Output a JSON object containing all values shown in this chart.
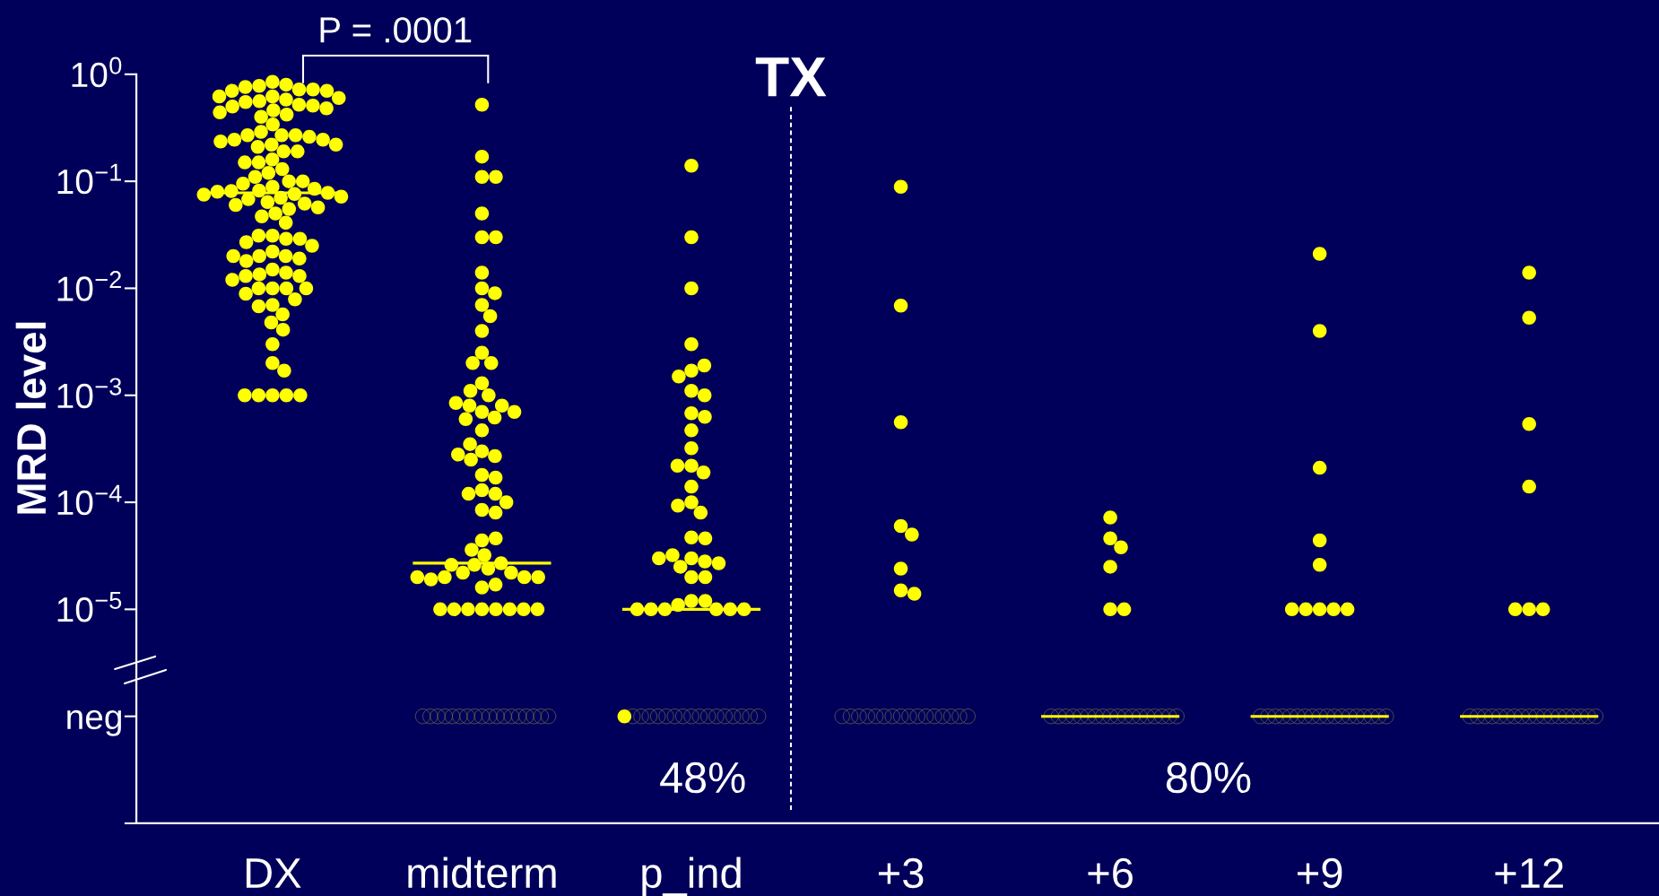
{
  "chart_data": {
    "type": "scatter",
    "categories": [
      "DX",
      "midterm",
      "p_ind",
      "+3",
      "+6",
      "+9",
      "+12"
    ],
    "ylabel": "MRD level",
    "log": "y",
    "ylim": [
      1e-07,
      1
    ],
    "yticks": [
      {
        "value": 1e-07,
        "label": null
      },
      {
        "value": 1e-06,
        "label": "neg"
      },
      {
        "value": 1e-05,
        "label": "10$^{−5}$"
      },
      {
        "value": 0.0001,
        "label": "10$^{−4}$"
      },
      {
        "value": 0.001,
        "label": "10$^{−3}$"
      },
      {
        "value": 0.01,
        "label": "10$^{−2}$"
      },
      {
        "value": 0.1,
        "label": "10$^{−1}$"
      },
      {
        "value": 1,
        "label": "10$^{0}$"
      }
    ],
    "annotations": [
      "P = .0001",
      "TX",
      "48%",
      "80%"
    ],
    "ref_lines": [
      {
        "axis": "y",
        "value": 0.078,
        "color": "#ffff00"
      },
      {
        "axis": "y",
        "value": 2.7e-05,
        "color": "#ffff00"
      },
      {
        "axis": "y",
        "value": 1e-05,
        "color": "#ffff00"
      },
      {
        "axis": "y",
        "value": 1e-06,
        "color": "#ffff00"
      }
    ],
    "series": [
      {
        "marker": "circle",
        "color": "#ffff00",
        "x": [
          "DX",
          "DX",
          "DX",
          "DX",
          "DX",
          "DX",
          "DX",
          "DX",
          "DX",
          "DX",
          "DX",
          "DX",
          "DX",
          "DX",
          "DX",
          "DX",
          "DX",
          "DX",
          "DX",
          "DX",
          "DX",
          "DX",
          "DX",
          "DX",
          "DX",
          "DX",
          "DX",
          "DX",
          "DX",
          "DX",
          "DX",
          "DX",
          "DX",
          "DX",
          "DX",
          "DX",
          "DX",
          "DX",
          "DX",
          "DX",
          "DX",
          "DX",
          "DX",
          "DX",
          "DX",
          "DX",
          "DX",
          "DX",
          "DX",
          "DX",
          "DX",
          "DX",
          "DX",
          "DX",
          "DX",
          "DX",
          "DX",
          "DX",
          "DX",
          "DX",
          "DX",
          "DX",
          "DX",
          "DX",
          "DX",
          "DX",
          "DX",
          "DX",
          "DX",
          "DX",
          "DX",
          "DX",
          "DX",
          "DX",
          "DX",
          "DX",
          "DX",
          "DX",
          "DX",
          "DX",
          "DX",
          "DX",
          "DX",
          "DX",
          "DX",
          "DX",
          "DX",
          "DX",
          "DX",
          "DX",
          "DX",
          "DX",
          "DX",
          "DX",
          "DX",
          "DX",
          "DX",
          "DX",
          "DX",
          "DX",
          "DX",
          "midterm",
          "midterm",
          "midterm",
          "midterm",
          "midterm",
          "midterm",
          "midterm",
          "midterm",
          "midterm",
          "midterm",
          "midterm",
          "midterm",
          "midterm",
          "midterm",
          "midterm",
          "midterm",
          "midterm",
          "midterm",
          "midterm",
          "midterm",
          "midterm",
          "midterm",
          "midterm",
          "midterm",
          "midterm",
          "midterm",
          "midterm",
          "midterm",
          "midterm",
          "midterm",
          "midterm",
          "midterm",
          "midterm",
          "midterm",
          "midterm",
          "midterm",
          "midterm",
          "midterm",
          "midterm",
          "midterm",
          "midterm",
          "midterm",
          "midterm",
          "midterm",
          "midterm",
          "midterm",
          "midterm",
          "midterm",
          "midterm",
          "midterm",
          "midterm",
          "midterm",
          "midterm",
          "midterm",
          "midterm",
          "midterm",
          "midterm",
          "midterm",
          "midterm",
          "midterm",
          "midterm",
          "midterm",
          "midterm",
          "midterm",
          "midterm",
          "p_ind",
          "p_ind",
          "p_ind",
          "p_ind",
          "p_ind",
          "p_ind",
          "p_ind",
          "p_ind",
          "p_ind",
          "p_ind",
          "p_ind",
          "p_ind",
          "p_ind",
          "p_ind",
          "p_ind",
          "p_ind",
          "p_ind",
          "p_ind",
          "p_ind",
          "p_ind",
          "p_ind",
          "p_ind",
          "p_ind",
          "p_ind",
          "p_ind",
          "p_ind",
          "p_ind",
          "p_ind",
          "p_ind",
          "p_ind",
          "p_ind",
          "p_ind",
          "p_ind",
          "p_ind",
          "p_ind",
          "p_ind",
          "p_ind",
          "p_ind",
          "p_ind",
          "p_ind",
          "+3",
          "+3",
          "+3",
          "+3",
          "+3",
          "+3",
          "+3",
          "+3",
          "+6",
          "+6",
          "+6",
          "+6",
          "+6",
          "+6",
          "+9",
          "+9",
          "+9",
          "+9",
          "+9",
          "+9",
          "+9",
          "+9",
          "+9",
          "+9",
          "+12",
          "+12",
          "+12",
          "+12",
          "+12",
          "+12",
          "+12"
        ],
        "values": [
          0.85,
          0.8,
          0.78,
          0.76,
          0.72,
          0.72,
          0.7,
          0.7,
          0.62,
          0.62,
          0.6,
          0.58,
          0.56,
          0.55,
          0.52,
          0.51,
          0.5,
          0.48,
          0.46,
          0.44,
          0.42,
          0.4,
          0.34,
          0.29,
          0.27,
          0.27,
          0.27,
          0.26,
          0.245,
          0.245,
          0.235,
          0.22,
          0.22,
          0.21,
          0.19,
          0.19,
          0.16,
          0.15,
          0.15,
          0.13,
          0.12,
          0.11,
          0.1,
          0.1,
          0.095,
          0.089,
          0.085,
          0.082,
          0.081,
          0.08,
          0.078,
          0.076,
          0.075,
          0.072,
          0.07,
          0.068,
          0.064,
          0.062,
          0.06,
          0.057,
          0.055,
          0.05,
          0.047,
          0.041,
          0.031,
          0.031,
          0.029,
          0.029,
          0.027,
          0.025,
          0.022,
          0.02,
          0.02,
          0.019,
          0.018,
          0.02,
          0.015,
          0.014,
          0.0135,
          0.013,
          0.013,
          0.012,
          0.01,
          0.01,
          0.01,
          0.01,
          0.0089,
          0.0079,
          0.007,
          0.0068,
          0.0057,
          0.0048,
          0.0041,
          0.003,
          0.002,
          0.0017,
          0.001,
          0.001,
          0.001,
          0.001,
          0.001,
          0.52,
          0.17,
          0.11,
          0.11,
          0.05,
          0.03,
          0.03,
          0.014,
          0.01,
          0.009,
          0.007,
          0.0055,
          0.004,
          0.0025,
          0.002,
          0.002,
          0.0013,
          0.001,
          0.0011,
          0.0007,
          0.0008,
          0.00062,
          0.0008,
          0.00085,
          0.0006,
          0.0007,
          0.00047,
          0.0003,
          0.00027,
          0.00025,
          0.00028,
          0.00035,
          0.00018,
          0.00017,
          0.00013,
          0.00012,
          0.00012,
          0.0001,
          8.5e-05,
          8e-05,
          4.4e-05,
          4.6e-05,
          3.6e-05,
          3.2e-05,
          2.6e-05,
          2.4e-05,
          2.7e-05,
          2.2e-05,
          2.6e-05,
          2.2e-05,
          2e-05,
          1.6e-05,
          2e-05,
          1.7e-05,
          1.9e-05,
          2e-05,
          2e-05,
          1e-05,
          1e-05,
          1e-05,
          1e-05,
          1e-05,
          1e-05,
          1e-05,
          1e-05,
          0.14,
          0.03,
          0.01,
          0.003,
          0.0017,
          0.0019,
          0.0015,
          0.0011,
          0.001,
          0.00068,
          0.00063,
          0.00047,
          0.00032,
          0.00022,
          0.00019,
          0.00022,
          0.00014,
          0.0001,
          8e-05,
          9.3e-05,
          4.7e-05,
          4.6e-05,
          3e-05,
          2.8e-05,
          2.5e-05,
          3.2e-05,
          2.7e-05,
          3e-05,
          2e-05,
          2e-05,
          1.2e-05,
          1.2e-05,
          1.1e-05,
          1e-05,
          1e-05,
          1e-05,
          1e-05,
          1e-05,
          1e-05,
          1e-06,
          0.089,
          0.0069,
          0.00056,
          6e-05,
          5e-05,
          2.4e-05,
          1.5e-05,
          1.4e-05,
          7.2e-05,
          4.6e-05,
          3.8e-05,
          2.5e-05,
          1e-05,
          1e-05,
          0.021,
          0.004,
          0.00021,
          4.4e-05,
          2.6e-05,
          1e-05,
          1e-05,
          1e-05,
          1e-05,
          1e-05,
          0.014,
          0.0053,
          0.00054,
          0.00014,
          1e-05,
          1e-05,
          1e-05
        ]
      },
      {
        "marker": "open circle",
        "color": "#707048",
        "x": [
          "midterm",
          "midterm",
          "midterm",
          "midterm",
          "midterm",
          "midterm",
          "midterm",
          "midterm",
          "midterm",
          "midterm",
          "midterm",
          "midterm",
          "midterm",
          "midterm",
          "midterm",
          "midterm",
          "midterm",
          "midterm",
          "p_ind",
          "p_ind",
          "p_ind",
          "p_ind",
          "p_ind",
          "p_ind",
          "p_ind",
          "p_ind",
          "p_ind",
          "p_ind",
          "p_ind",
          "p_ind",
          "p_ind",
          "p_ind",
          "p_ind",
          "p_ind",
          "+3",
          "+3",
          "+3",
          "+3",
          "+3",
          "+3",
          "+3",
          "+3",
          "+3",
          "+3",
          "+3",
          "+3",
          "+3",
          "+3",
          "+3",
          "+3",
          "+6",
          "+6",
          "+6",
          "+6",
          "+6",
          "+6",
          "+6",
          "+6",
          "+6",
          "+6",
          "+6",
          "+6",
          "+6",
          "+6",
          "+6",
          "+6",
          "+6",
          "+6",
          "+9",
          "+9",
          "+9",
          "+9",
          "+9",
          "+9",
          "+9",
          "+9",
          "+9",
          "+9",
          "+9",
          "+9",
          "+9",
          "+9",
          "+9",
          "+9",
          "+9",
          "+9",
          "+12",
          "+12",
          "+12",
          "+12",
          "+12",
          "+12",
          "+12",
          "+12",
          "+12",
          "+12",
          "+12",
          "+12",
          "+12",
          "+12",
          "+12",
          "+12",
          "+12",
          "+12"
        ],
        "values": [
          1e-06,
          1e-06,
          1e-06,
          1e-06,
          1e-06,
          1e-06,
          1e-06,
          1e-06,
          1e-06,
          1e-06,
          1e-06,
          1e-06,
          1e-06,
          1e-06,
          1e-06,
          1e-06,
          1e-06,
          1e-06,
          1e-06,
          1e-06,
          1e-06,
          1e-06,
          1e-06,
          1e-06,
          1e-06,
          1e-06,
          1e-06,
          1e-06,
          1e-06,
          1e-06,
          1e-06,
          1e-06,
          1e-06,
          1e-06,
          1e-06,
          1e-06,
          1e-06,
          1e-06,
          1e-06,
          1e-06,
          1e-06,
          1e-06,
          1e-06,
          1e-06,
          1e-06,
          1e-06,
          1e-06,
          1e-06,
          1e-06,
          1e-06,
          1e-06,
          1e-06,
          1e-06,
          1e-06,
          1e-06,
          1e-06,
          1e-06,
          1e-06,
          1e-06,
          1e-06,
          1e-06,
          1e-06,
          1e-06,
          1e-06,
          1e-06,
          1e-06,
          1e-06,
          1e-06,
          1e-06,
          1e-06,
          1e-06,
          1e-06,
          1e-06,
          1e-06,
          1e-06,
          1e-06,
          1e-06,
          1e-06,
          1e-06,
          1e-06,
          1e-06,
          1e-06,
          1e-06,
          1e-06,
          1e-06,
          1e-06,
          1e-06,
          1e-06,
          1e-06,
          1e-06,
          1e-06,
          1e-06,
          1e-06,
          1e-06,
          1e-06,
          1e-06,
          1e-06,
          1e-06,
          1e-06,
          1e-06,
          1e-06,
          1e-06,
          1e-06,
          1e-06
        ]
      }
    ]
  }
}
